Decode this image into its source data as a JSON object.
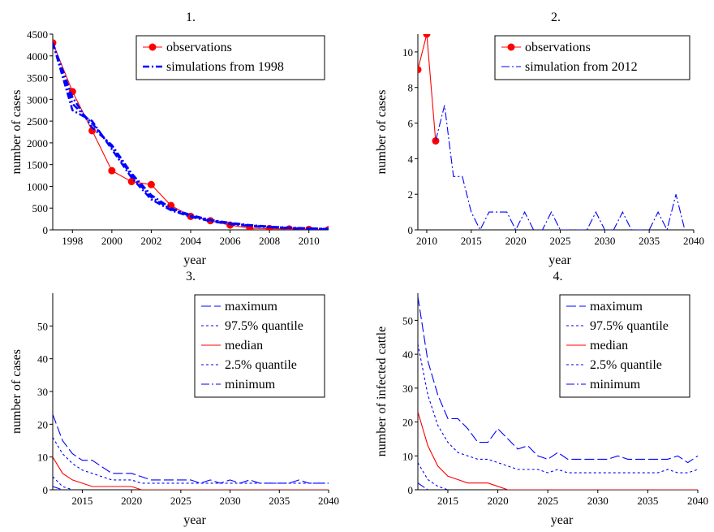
{
  "chart_data": [
    {
      "type": "line",
      "title": "1.",
      "xlabel": "year",
      "ylabel": "number of cases",
      "xlim": [
        1997,
        2011
      ],
      "ylim": [
        0,
        4500
      ],
      "xticks": [
        1998,
        2000,
        2002,
        2004,
        2006,
        2008,
        2010
      ],
      "yticks": [
        0,
        500,
        1000,
        1500,
        2000,
        2500,
        3000,
        3500,
        4000,
        4500
      ],
      "legend": "top-right",
      "series": [
        {
          "name": "observations",
          "color": "#ff0000",
          "style": "solid-dot",
          "x": [
            1997,
            1998,
            1999,
            2000,
            2001,
            2002,
            2003,
            2004,
            2005,
            2006,
            2007,
            2008,
            2009,
            2010,
            2011
          ],
          "y": [
            4300,
            3180,
            2280,
            1360,
            1110,
            1040,
            560,
            310,
            210,
            110,
            40,
            30,
            20,
            10,
            5
          ]
        },
        {
          "name": "simulations from 1998",
          "color": "#0000ff",
          "style": "dashdot-bold",
          "x": [
            1997,
            1998,
            1999,
            2000,
            2001,
            2002,
            2003,
            2004,
            2005,
            2006,
            2007,
            2008,
            2009,
            2010,
            2011
          ],
          "y": [
            4300,
            2900,
            2450,
            1900,
            1250,
            750,
            470,
            320,
            220,
            150,
            100,
            70,
            45,
            30,
            20
          ]
        },
        {
          "name": "",
          "color": "#0000ff",
          "style": "dashdot-bold",
          "x": [
            1997,
            1998,
            1999,
            2000,
            2001,
            2002,
            2003,
            2004,
            2005,
            2006,
            2007,
            2008,
            2009,
            2010,
            2011
          ],
          "y": [
            4300,
            2750,
            2500,
            1850,
            1200,
            700,
            450,
            300,
            200,
            130,
            90,
            60,
            40,
            25,
            15
          ]
        },
        {
          "name": "",
          "color": "#0000ff",
          "style": "dashdot-bold",
          "x": [
            1997,
            1998,
            1999,
            2000,
            2001,
            2002,
            2003,
            2004,
            2005,
            2006,
            2007,
            2008,
            2009,
            2010,
            2011
          ],
          "y": [
            4300,
            3050,
            2350,
            1950,
            1300,
            800,
            500,
            340,
            230,
            160,
            110,
            75,
            50,
            35,
            25
          ]
        }
      ]
    },
    {
      "type": "line",
      "title": "2.",
      "xlabel": "year",
      "ylabel": "number of cases",
      "xlim": [
        2009,
        2040
      ],
      "ylim": [
        0,
        11
      ],
      "xticks": [
        2010,
        2015,
        2020,
        2025,
        2030,
        2035,
        2040
      ],
      "yticks": [
        0,
        2,
        4,
        6,
        8,
        10
      ],
      "legend": "top-right",
      "series": [
        {
          "name": "observations",
          "color": "#ff0000",
          "style": "solid-dot",
          "x": [
            2009,
            2010,
            2011
          ],
          "y": [
            9,
            11,
            5
          ]
        },
        {
          "name": "simulation from 2012",
          "color": "#0000ff",
          "style": "dashdot",
          "x": [
            2011,
            2012,
            2013,
            2014,
            2015,
            2016,
            2017,
            2018,
            2019,
            2020,
            2021,
            2022,
            2023,
            2024,
            2025,
            2026,
            2027,
            2028,
            2029,
            2030,
            2031,
            2032,
            2033,
            2034,
            2035,
            2036,
            2037,
            2038,
            2039
          ],
          "y": [
            5,
            7,
            3,
            3,
            1,
            0,
            1,
            1,
            1,
            0,
            1,
            0,
            0,
            1,
            0,
            0,
            0,
            0,
            1,
            0,
            0,
            1,
            0,
            0,
            0,
            1,
            0,
            2,
            0
          ]
        }
      ]
    },
    {
      "type": "line",
      "title": "3.",
      "xlabel": "year",
      "ylabel": "number of cases",
      "xlim": [
        2012,
        2040
      ],
      "ylim": [
        0,
        60
      ],
      "xticks": [
        2015,
        2020,
        2025,
        2030,
        2035,
        2040
      ],
      "yticks": [
        0,
        10,
        20,
        30,
        40,
        50
      ],
      "legend": "top-right",
      "series": [
        {
          "name": "maximum",
          "color": "#0000ff",
          "style": "longdash",
          "x": [
            2012,
            2013,
            2014,
            2015,
            2016,
            2017,
            2018,
            2019,
            2020,
            2021,
            2022,
            2023,
            2024,
            2025,
            2026,
            2027,
            2028,
            2029,
            2030,
            2031,
            2032,
            2033,
            2034,
            2035,
            2036,
            2037,
            2038,
            2039,
            2040
          ],
          "y": [
            23,
            15,
            11,
            9,
            9,
            7,
            5,
            5,
            5,
            4,
            3,
            3,
            3,
            3,
            3,
            2,
            3,
            2,
            3,
            2,
            3,
            2,
            2,
            2,
            2,
            3,
            2,
            2,
            2
          ]
        },
        {
          "name": "97.5% quantile",
          "color": "#0000ff",
          "style": "dotted",
          "x": [
            2012,
            2013,
            2014,
            2015,
            2016,
            2017,
            2018,
            2019,
            2020,
            2021,
            2022,
            2023,
            2024,
            2025,
            2026,
            2027,
            2028,
            2029,
            2030,
            2031,
            2032,
            2033,
            2034,
            2035,
            2036,
            2037,
            2038,
            2039,
            2040
          ],
          "y": [
            16,
            11,
            8,
            6,
            5,
            4,
            3,
            3,
            3,
            2,
            2,
            2,
            2,
            2,
            2,
            2,
            2,
            2,
            2,
            2,
            2,
            2,
            2,
            2,
            2,
            2,
            2,
            2,
            2
          ]
        },
        {
          "name": "median",
          "color": "#ff0000",
          "style": "solid",
          "x": [
            2012,
            2013,
            2014,
            2015,
            2016,
            2017,
            2018,
            2019,
            2020,
            2021,
            2022,
            2023,
            2024,
            2025,
            2026,
            2027,
            2028,
            2029,
            2030,
            2031,
            2032,
            2033,
            2034,
            2035,
            2036,
            2037,
            2038,
            2039,
            2040
          ],
          "y": [
            10,
            5,
            3,
            2,
            1,
            1,
            1,
            1,
            1,
            0,
            0,
            0,
            0,
            0,
            0,
            0,
            0,
            0,
            0,
            0,
            0,
            0,
            0,
            0,
            0,
            0,
            0,
            0,
            0
          ]
        },
        {
          "name": "2.5% quantile",
          "color": "#0000ff",
          "style": "dotted",
          "x": [
            2012,
            2013,
            2014
          ],
          "y": [
            4,
            1,
            0
          ]
        },
        {
          "name": "minimum",
          "color": "#0000ff",
          "style": "dashdot",
          "x": [
            2012,
            2013
          ],
          "y": [
            1,
            0
          ]
        }
      ]
    },
    {
      "type": "line",
      "title": "4.",
      "xlabel": "year",
      "ylabel": "number of infected cattle",
      "xlim": [
        2012,
        2040
      ],
      "ylim": [
        0,
        58
      ],
      "xticks": [
        2015,
        2020,
        2025,
        2030,
        2035,
        2040
      ],
      "yticks": [
        0,
        10,
        20,
        30,
        40,
        50
      ],
      "legend": "top-right",
      "series": [
        {
          "name": "maximum",
          "color": "#0000ff",
          "style": "longdash",
          "x": [
            2012,
            2013,
            2014,
            2015,
            2016,
            2017,
            2018,
            2019,
            2020,
            2021,
            2022,
            2023,
            2024,
            2025,
            2026,
            2027,
            2028,
            2029,
            2030,
            2031,
            2032,
            2033,
            2034,
            2035,
            2036,
            2037,
            2038,
            2039,
            2040
          ],
          "y": [
            57,
            38,
            28,
            21,
            21,
            18,
            14,
            14,
            18,
            15,
            12,
            13,
            10,
            9,
            11,
            9,
            9,
            9,
            9,
            9,
            10,
            9,
            9,
            9,
            9,
            9,
            10,
            8,
            10
          ]
        },
        {
          "name": "97.5% quantile",
          "color": "#0000ff",
          "style": "dotted",
          "x": [
            2012,
            2013,
            2014,
            2015,
            2016,
            2017,
            2018,
            2019,
            2020,
            2021,
            2022,
            2023,
            2024,
            2025,
            2026,
            2027,
            2028,
            2029,
            2030,
            2031,
            2032,
            2033,
            2034,
            2035,
            2036,
            2037,
            2038,
            2039,
            2040
          ],
          "y": [
            43,
            28,
            19,
            14,
            11,
            10,
            9,
            9,
            8,
            7,
            6,
            6,
            6,
            5,
            6,
            5,
            5,
            5,
            5,
            5,
            5,
            5,
            5,
            5,
            5,
            6,
            5,
            5,
            6
          ]
        },
        {
          "name": "median",
          "color": "#ff0000",
          "style": "solid",
          "x": [
            2012,
            2013,
            2014,
            2015,
            2016,
            2017,
            2018,
            2019,
            2020,
            2021,
            2022,
            2023,
            2024,
            2025,
            2026,
            2027,
            2028,
            2029,
            2030,
            2031,
            2032,
            2033,
            2034,
            2035,
            2036,
            2037,
            2038,
            2039,
            2040
          ],
          "y": [
            23,
            13,
            7,
            4,
            3,
            2,
            2,
            2,
            1,
            0,
            0,
            0,
            0,
            0,
            0,
            0,
            0,
            0,
            0,
            0,
            0,
            0,
            0,
            0,
            0,
            0,
            0,
            0,
            0
          ]
        },
        {
          "name": "2.5% quantile",
          "color": "#0000ff",
          "style": "dotted",
          "x": [
            2012,
            2013,
            2014,
            2015
          ],
          "y": [
            8,
            3,
            1,
            0
          ]
        },
        {
          "name": "minimum",
          "color": "#0000ff",
          "style": "dashdot",
          "x": [
            2012,
            2013
          ],
          "y": [
            2,
            0
          ]
        }
      ]
    }
  ]
}
